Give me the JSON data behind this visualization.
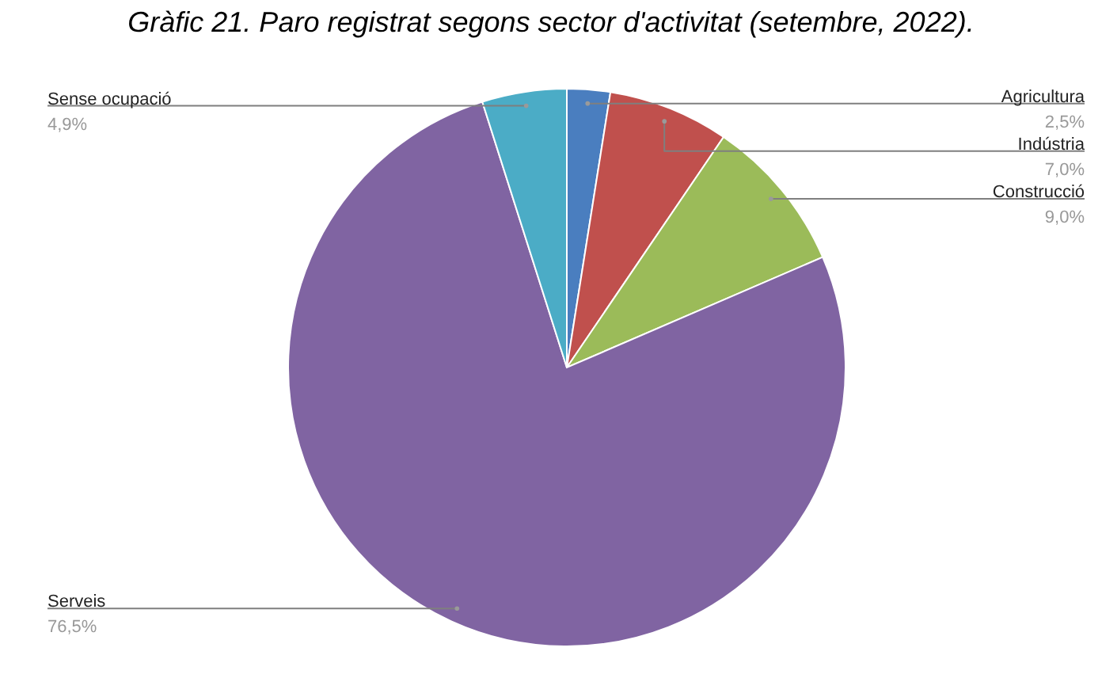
{
  "chart_data": {
    "type": "pie",
    "title": "Gràfic 21. Paro registrat segons  sector d'activitat (setembre, 2022).",
    "categories": [
      "Agricultura",
      "Indústria",
      "Construcció",
      "Serveis",
      "Sense ocupació"
    ],
    "values": [
      2.5,
      7.0,
      9.0,
      76.5,
      4.9
    ],
    "value_labels": [
      "2,5%",
      "7,0%",
      "9,0%",
      "76,5%",
      "4,9%"
    ],
    "colors": [
      "#4a7ebf",
      "#c0504d",
      "#9bbb59",
      "#8064a2",
      "#4bacc6"
    ]
  }
}
